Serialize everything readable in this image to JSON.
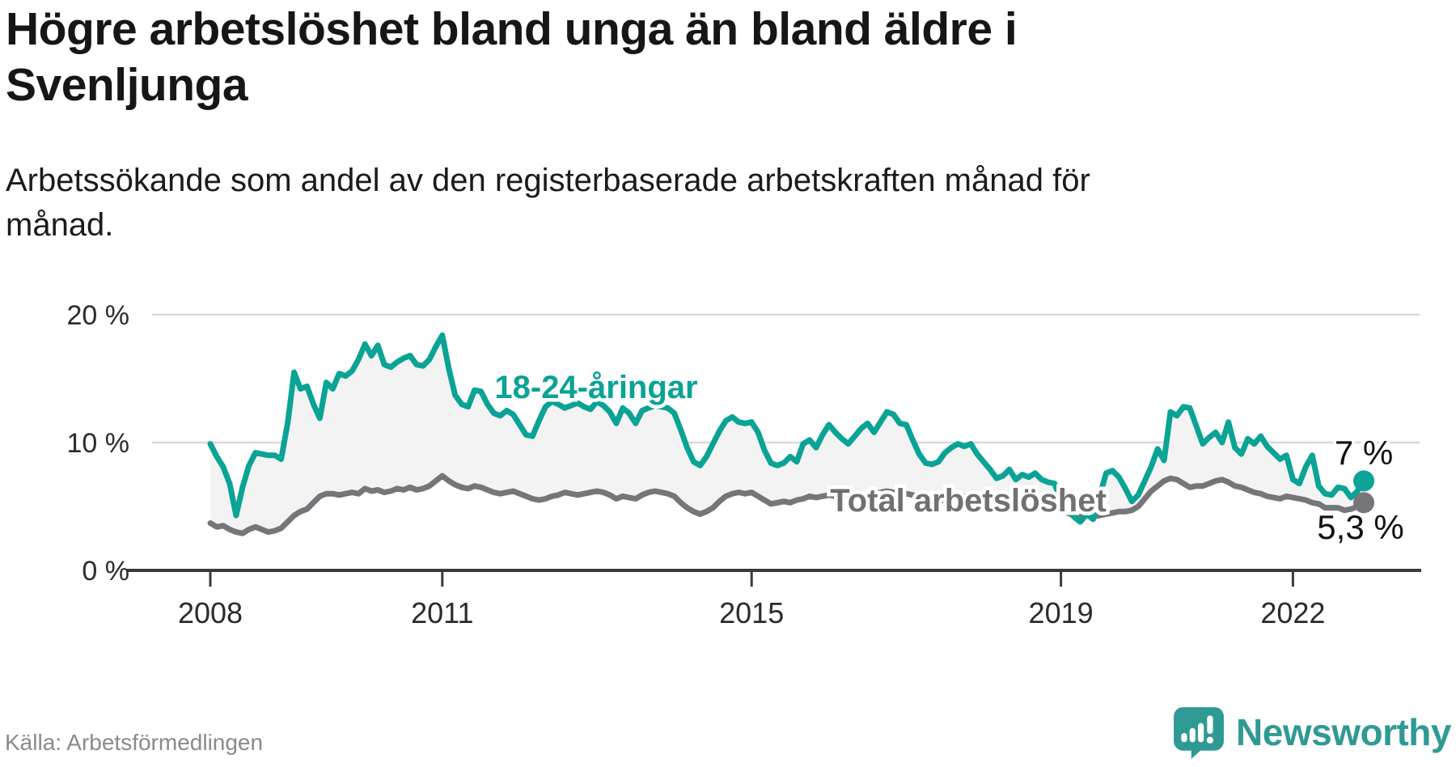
{
  "title": {
    "line1": "Högre arbetslöshet bland unga än bland äldre i",
    "line2": "Svenljunga"
  },
  "subtitle": {
    "line1": "Arbetssökande som andel av den registerbaserade arbetskraften månad för",
    "line2": "månad."
  },
  "source": "Källa: Arbetsförmedlingen",
  "brand": {
    "name": "Newsworthy",
    "color": "#2f9a93"
  },
  "colors": {
    "youth_line": "#0aa396",
    "total_line": "#76767a",
    "total_label": "#717174",
    "band_fill": "#f3f3f3",
    "gridline": "#d9d9d9",
    "axis": "#3a3a3a",
    "end_label": "#111111"
  },
  "annotations": {
    "youth_label": "18-24-åringar",
    "total_label": "Total arbetslöshet",
    "youth_end_label": "7 %",
    "total_end_label": "5,3 %"
  },
  "chart_data": {
    "type": "line",
    "title": "Högre arbetslöshet bland unga än bland äldre i Svenljunga",
    "subtitle": "Arbetssökande som andel av den registerbaserade arbetskraften månad för månad.",
    "frequency": "monthly",
    "x_start": "2008-01",
    "x_end": "2022-12",
    "ylim": [
      0,
      21.5
    ],
    "grid": "horizontal-only",
    "legend_position": "inline-annotations",
    "y_ticks": [
      {
        "label": "20 %",
        "value": 20
      },
      {
        "label": "10 %",
        "value": 10
      },
      {
        "label": "0 %",
        "value": 0
      }
    ],
    "x_ticks": [
      {
        "label": "2008",
        "year": 2008
      },
      {
        "label": "2011",
        "year": 2011
      },
      {
        "label": "2015",
        "year": 2015
      },
      {
        "label": "2019",
        "year": 2019
      },
      {
        "label": "2022",
        "year": 2022
      }
    ],
    "series": [
      {
        "name": "18-24-åringar",
        "color": "#0aa396",
        "end_value": 7.0,
        "end_value_label": "7 %",
        "values": [
          9.9,
          8.9,
          8.1,
          6.8,
          4.3,
          6.5,
          8.2,
          9.2,
          9.1,
          9.0,
          9.0,
          8.7,
          11.5,
          15.5,
          14.2,
          14.4,
          13.0,
          11.9,
          14.7,
          14.2,
          15.4,
          15.2,
          15.6,
          16.5,
          17.7,
          16.8,
          17.6,
          16.1,
          15.9,
          16.3,
          16.6,
          16.8,
          16.1,
          16.0,
          16.5,
          17.5,
          18.4,
          15.8,
          13.7,
          13.0,
          12.8,
          14.1,
          14.0,
          13.0,
          12.3,
          12.1,
          12.5,
          12.2,
          11.4,
          10.6,
          10.5,
          11.7,
          12.8,
          13.2,
          13.0,
          12.7,
          12.9,
          13.1,
          12.8,
          12.6,
          13.2,
          12.9,
          12.4,
          11.5,
          12.7,
          12.3,
          11.5,
          12.5,
          12.7,
          12.9,
          12.8,
          12.7,
          12.3,
          11.0,
          9.6,
          8.5,
          8.2,
          8.9,
          9.9,
          10.9,
          11.7,
          12.0,
          11.6,
          11.5,
          11.6,
          10.8,
          9.4,
          8.4,
          8.2,
          8.4,
          8.9,
          8.5,
          9.9,
          10.2,
          9.6,
          10.6,
          11.4,
          10.8,
          10.3,
          9.9,
          10.5,
          11.1,
          11.5,
          10.8,
          11.6,
          12.4,
          12.2,
          11.5,
          11.4,
          10.2,
          9.1,
          8.4,
          8.3,
          8.5,
          9.2,
          9.6,
          9.9,
          9.7,
          9.9,
          9.1,
          8.5,
          7.9,
          7.2,
          7.4,
          7.9,
          7.1,
          7.5,
          7.3,
          7.6,
          7.1,
          6.9,
          6.8,
          5.5,
          4.8,
          4.2,
          3.8,
          4.4,
          4.0,
          5.8,
          7.6,
          7.8,
          7.3,
          6.4,
          5.4,
          5.9,
          7.0,
          8.1,
          9.5,
          8.6,
          12.4,
          12.1,
          12.8,
          12.7,
          11.3,
          9.9,
          10.4,
          10.8,
          10.0,
          11.6,
          9.6,
          9.1,
          10.3,
          9.9,
          10.5,
          9.7,
          9.2,
          8.7,
          9.0,
          7.1,
          6.8,
          8.1,
          9.0,
          6.6,
          6.0,
          5.9,
          6.5,
          6.4,
          5.7,
          6.2,
          7.0
        ]
      },
      {
        "name": "Total arbetslöshet",
        "color": "#76767a",
        "end_value": 5.3,
        "end_value_label": "5,3 %",
        "values": [
          3.7,
          3.4,
          3.5,
          3.2,
          3.0,
          2.9,
          3.2,
          3.4,
          3.2,
          3.0,
          3.1,
          3.3,
          3.8,
          4.3,
          4.6,
          4.8,
          5.3,
          5.8,
          6.0,
          6.0,
          5.9,
          6.0,
          6.1,
          6.0,
          6.4,
          6.2,
          6.3,
          6.1,
          6.2,
          6.4,
          6.3,
          6.5,
          6.3,
          6.4,
          6.6,
          7.0,
          7.4,
          7.0,
          6.7,
          6.5,
          6.4,
          6.6,
          6.5,
          6.3,
          6.1,
          6.0,
          6.1,
          6.2,
          6.0,
          5.8,
          5.6,
          5.5,
          5.6,
          5.8,
          5.9,
          6.1,
          6.0,
          5.9,
          6.0,
          6.1,
          6.2,
          6.1,
          5.9,
          5.6,
          5.8,
          5.7,
          5.6,
          5.9,
          6.1,
          6.2,
          6.1,
          6.0,
          5.8,
          5.3,
          4.9,
          4.6,
          4.4,
          4.6,
          4.9,
          5.4,
          5.8,
          6.0,
          6.1,
          6.0,
          6.1,
          5.8,
          5.5,
          5.2,
          5.3,
          5.4,
          5.3,
          5.5,
          5.6,
          5.8,
          5.7,
          5.8,
          5.9,
          5.8,
          5.7,
          5.6,
          5.7,
          5.8,
          5.9,
          6.0,
          6.1,
          6.2,
          6.1,
          6.0,
          6.0,
          5.9,
          5.7,
          5.6,
          5.5,
          5.4,
          5.5,
          5.6,
          5.7,
          5.8,
          5.7,
          5.6,
          5.4,
          5.2,
          5.1,
          5.0,
          5.1,
          5.2,
          5.1,
          5.0,
          4.9,
          4.8,
          4.8,
          4.9,
          4.7,
          4.5,
          4.3,
          4.2,
          4.3,
          4.2,
          4.3,
          4.4,
          4.5,
          4.6,
          4.6,
          4.7,
          5.0,
          5.6,
          6.2,
          6.6,
          7.0,
          7.2,
          7.1,
          6.8,
          6.5,
          6.6,
          6.6,
          6.8,
          7.0,
          7.1,
          6.9,
          6.6,
          6.5,
          6.3,
          6.1,
          6.0,
          5.8,
          5.7,
          5.6,
          5.8,
          5.7,
          5.6,
          5.5,
          5.3,
          5.2,
          4.9,
          4.9,
          4.9,
          4.7,
          4.8,
          5.0,
          5.3
        ]
      }
    ]
  }
}
